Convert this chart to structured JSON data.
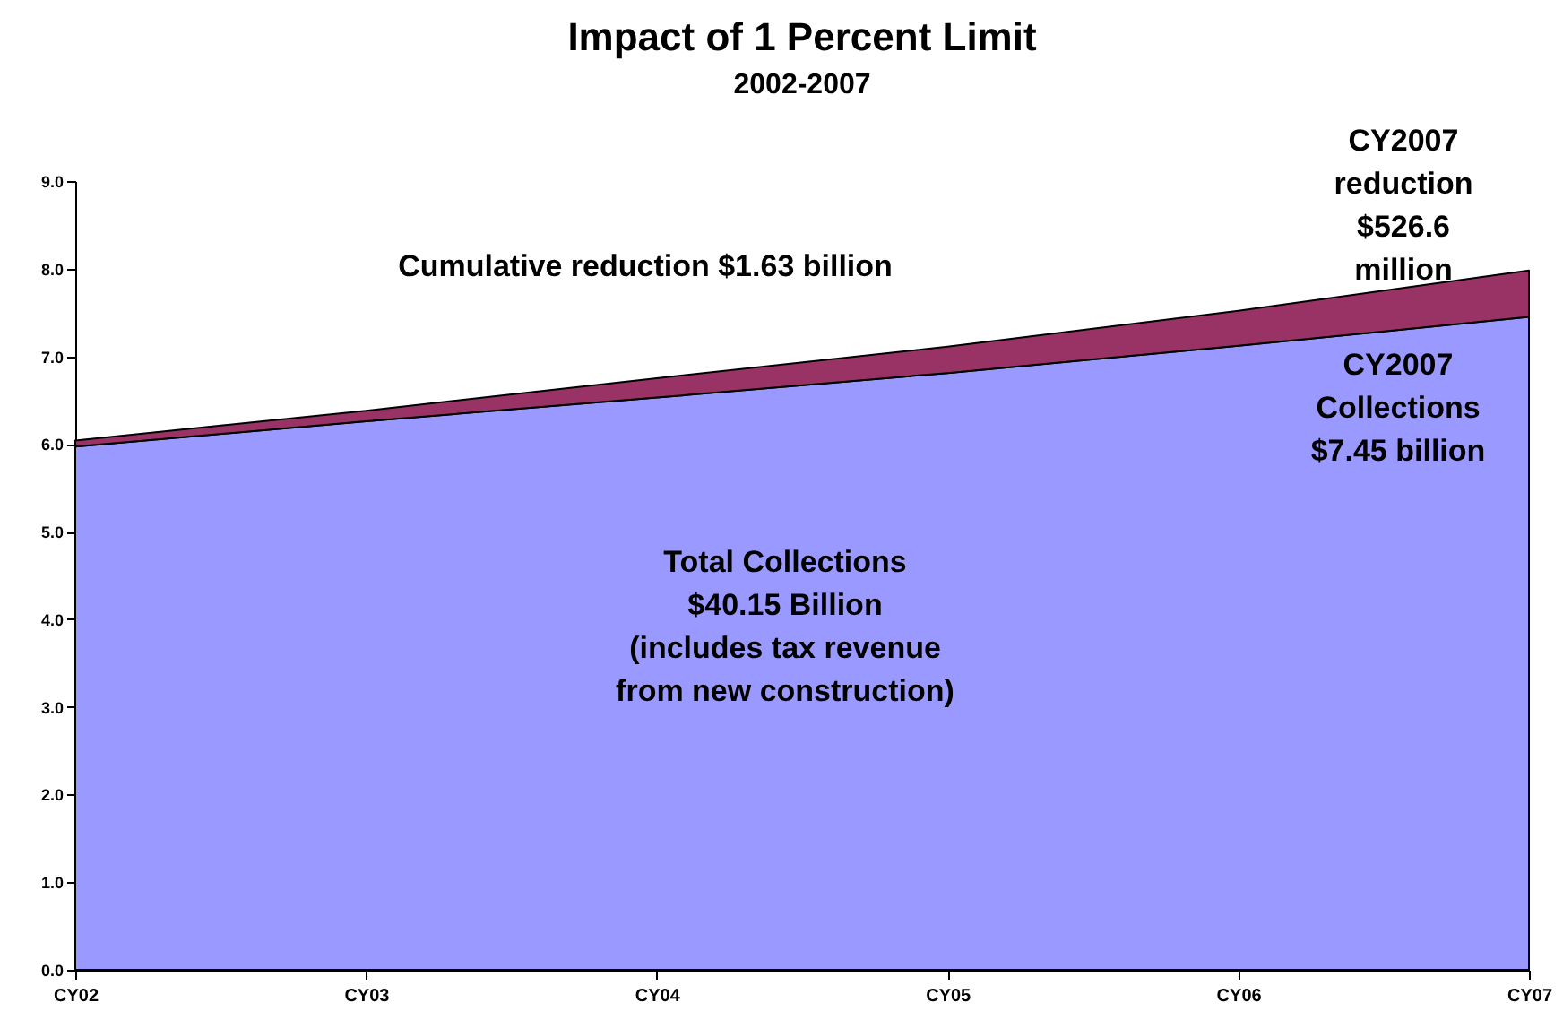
{
  "chart_data": {
    "type": "area",
    "title": "Impact of 1 Percent Limit",
    "subtitle": "2002-2007",
    "categories": [
      "CY02",
      "CY03",
      "CY04",
      "CY05",
      "CY06",
      "CY07"
    ],
    "stacked": true,
    "series": [
      {
        "color": "#9999ff",
        "values": [
          5.97,
          6.26,
          6.53,
          6.81,
          7.12,
          7.45
        ]
      },
      {
        "color": "#993366",
        "values": [
          0.07,
          0.12,
          0.22,
          0.3,
          0.4,
          0.53
        ]
      }
    ],
    "ylim": [
      0,
      9
    ],
    "yticks": [
      {
        "value": 0,
        "label": "0.0"
      },
      {
        "value": 1,
        "label": "1.0"
      },
      {
        "value": 2,
        "label": "2.0"
      },
      {
        "value": 3,
        "label": "3.0"
      },
      {
        "value": 4,
        "label": "4.0"
      },
      {
        "value": 5,
        "label": "5.0"
      },
      {
        "value": 6,
        "label": "6.0"
      },
      {
        "value": 7,
        "label": "7.0"
      },
      {
        "value": 8,
        "label": "8.0"
      },
      {
        "value": 9,
        "label": "9.0"
      }
    ],
    "grid": false,
    "legend": false,
    "annotations": [
      "Cumulative reduction $1.63 billion",
      "CY2007\nreduction\n$526.6\nmillion",
      "CY2007\nCollections\n$7.45 billion",
      "Total Collections\n$40.15 Billion\n(includes tax revenue\nfrom new construction)"
    ]
  }
}
